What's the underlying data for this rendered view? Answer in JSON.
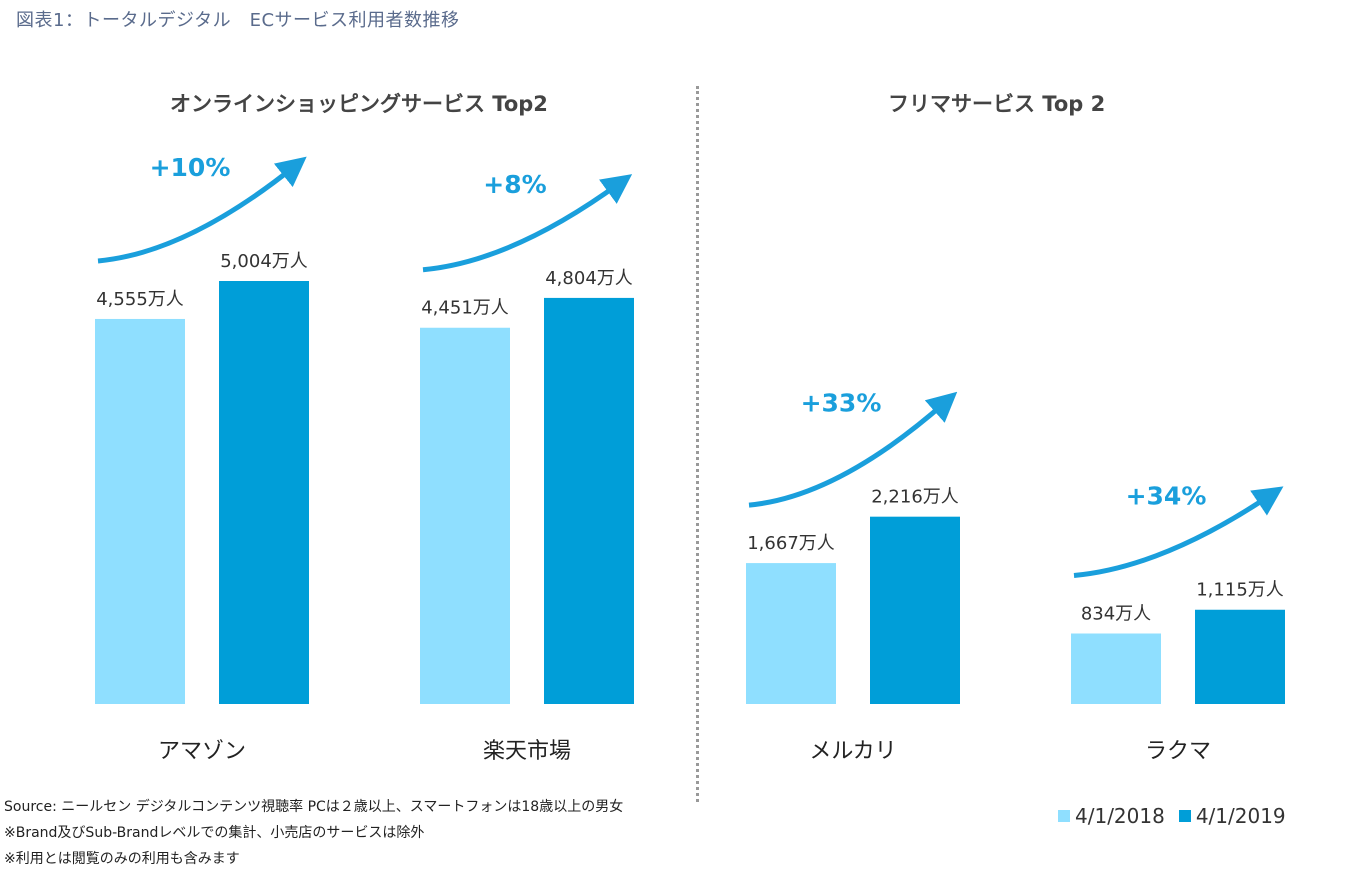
{
  "figure_title": "図表1：トータルデジタル　ECサービス利用者数推移",
  "panels": [
    {
      "title": "オンラインショッピングサービス Top2"
    },
    {
      "title": "フリマサービス Top 2"
    }
  ],
  "notes": [
    "Source: ニールセン デジタルコンテンツ視聴率 PCは２歳以上、スマートフォンは18歳以上の男女",
    "※Brand及びSub-Brandレベルでの集計、小売店のサービスは除外",
    "※利用とは閲覧のみの利用も含みます"
  ],
  "legend": [
    {
      "label": "4/1/2018",
      "color": "#8fdfff"
    },
    {
      "label": "4/1/2019",
      "color": "#009ed8"
    }
  ],
  "chart_data": {
    "type": "bar",
    "title": "図表1：トータルデジタル　ECサービス利用者数推移",
    "unit": "万人",
    "categories": [
      "アマゾン",
      "楽天市場",
      "メルカリ",
      "ラクマ"
    ],
    "series": [
      {
        "name": "4/1/2018",
        "values": [
          4555,
          4451,
          1667,
          834
        ]
      },
      {
        "name": "4/1/2019",
        "values": [
          5004,
          4804,
          2216,
          1115
        ]
      }
    ],
    "data_labels": [
      [
        "4,555万人",
        "5,004万人"
      ],
      [
        "4,451万人",
        "4,804万人"
      ],
      [
        "1,667万人",
        "2,216万人"
      ],
      [
        "834万人",
        "1,115万人"
      ]
    ],
    "growth_annotations": [
      "+10%",
      "+8%",
      "+33%",
      "+34%"
    ],
    "groups": [
      {
        "title": "オンラインショッピングサービス Top2",
        "categories": [
          "アマゾン",
          "楽天市場"
        ]
      },
      {
        "title": "フリマサービス Top 2",
        "categories": [
          "メルカリ",
          "ラクマ"
        ]
      }
    ],
    "colors": {
      "2018": "#8fdfff",
      "2019": "#009ed8",
      "annotation": "#1a9fdc"
    },
    "xlabel": "",
    "ylabel": "",
    "ylim": [
      0,
      5004
    ],
    "grid": false,
    "legend_position": "bottom-right"
  }
}
